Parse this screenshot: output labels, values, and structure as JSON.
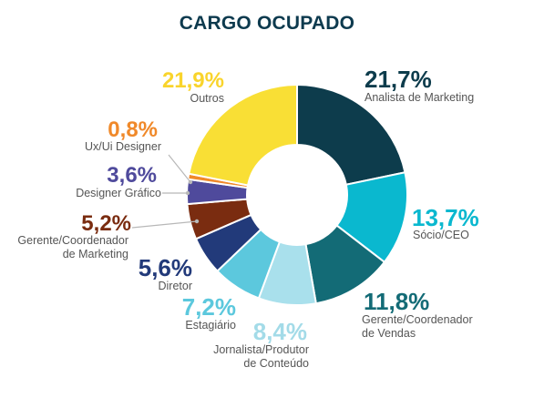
{
  "title": "CARGO OCUPADO",
  "chart_data": {
    "type": "pie",
    "variant": "donut",
    "title": "CARGO OCUPADO",
    "start": "top, clockwise",
    "slices": [
      {
        "label": "Analista de Marketing",
        "label_lines": [
          "Analista de Marketing"
        ],
        "value": 21.7,
        "value_label": "21,7%",
        "color": "#0d3c4c",
        "label_color": "#0d3c4c"
      },
      {
        "label": "Sócio/CEO",
        "label_lines": [
          "Sócio/CEO"
        ],
        "value": 13.7,
        "value_label": "13,7%",
        "color": "#0ab8cf",
        "label_color": "#0ab8cf"
      },
      {
        "label": "Gerente/Coordenador de Vendas",
        "label_lines": [
          "Gerente/Coordenador",
          "de Vendas"
        ],
        "value": 11.8,
        "value_label": "11,8%",
        "color": "#136b76",
        "label_color": "#136b76"
      },
      {
        "label": "Jornalista/Produtor de Conteúdo",
        "label_lines": [
          "Jornalista/Produtor",
          "de Conteúdo"
        ],
        "value": 8.4,
        "value_label": "8,4%",
        "color": "#a9e0ec",
        "label_color": "#a3dbe8"
      },
      {
        "label": "Estagiário",
        "label_lines": [
          "Estagiário"
        ],
        "value": 7.2,
        "value_label": "7,2%",
        "color": "#5cc8dd",
        "label_color": "#5cc8dd"
      },
      {
        "label": "Diretor",
        "label_lines": [
          "Diretor"
        ],
        "value": 5.6,
        "value_label": "5,6%",
        "color": "#223a7a",
        "label_color": "#223a7a"
      },
      {
        "label": "Gerente/Coordenador de Marketing",
        "label_lines": [
          "Gerente/Coordenador",
          "de Marketing"
        ],
        "value": 5.2,
        "value_label": "5,2%",
        "color": "#7a2c10",
        "label_color": "#7a2c10"
      },
      {
        "label": "Designer Gráfico",
        "label_lines": [
          "Designer Gráfico"
        ],
        "value": 3.6,
        "value_label": "3,6%",
        "color": "#4f4a9c",
        "label_color": "#4f4a9c"
      },
      {
        "label": "Ux/Ui Designer",
        "label_lines": [
          "Ux/Ui Designer"
        ],
        "value": 0.8,
        "value_label": "0,8%",
        "color": "#f0892a",
        "label_color": "#f0892a"
      },
      {
        "label": "Outros",
        "label_lines": [
          "Outros"
        ],
        "value": 21.9,
        "value_label": "21,9%",
        "color": "#f9df35",
        "label_color": "#f9d42c"
      }
    ]
  }
}
